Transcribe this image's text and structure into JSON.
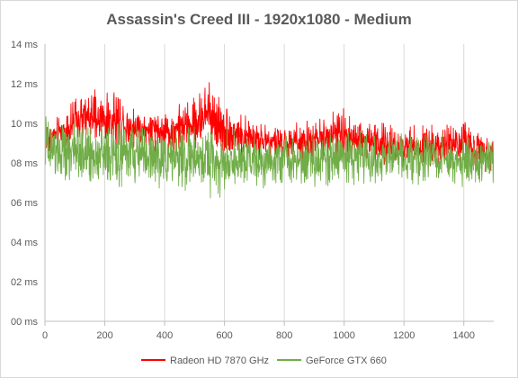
{
  "chart_data": {
    "type": "line",
    "title": "Assassin's Creed III - 1920x1080 - Medium",
    "xlabel": "",
    "ylabel": "",
    "xlim": [
      0,
      1500
    ],
    "ylim": [
      0,
      14
    ],
    "x_ticks": [
      0,
      200,
      400,
      600,
      800,
      1000,
      1200,
      1400
    ],
    "x_tick_labels": [
      "0",
      "200",
      "400",
      "600",
      "800",
      "1000",
      "1200",
      "1400"
    ],
    "y_ticks": [
      0,
      2,
      4,
      6,
      8,
      10,
      12,
      14
    ],
    "y_tick_labels": [
      "00 ms",
      "02 ms",
      "04 ms",
      "06 ms",
      "08 ms",
      "10 ms",
      "12 ms",
      "14 ms"
    ],
    "grid": "vertical",
    "legend_position": "bottom",
    "frame_count": 1500,
    "series": [
      {
        "name": "Radeon HD 7870 GHz",
        "color": "#ff0000",
        "envelope": [
          {
            "x": 0,
            "low": 8.3,
            "high": 10.2
          },
          {
            "x": 50,
            "low": 8.6,
            "high": 10.4
          },
          {
            "x": 100,
            "low": 8.8,
            "high": 11.2
          },
          {
            "x": 150,
            "low": 8.8,
            "high": 11.8
          },
          {
            "x": 200,
            "low": 8.7,
            "high": 11.5
          },
          {
            "x": 250,
            "low": 8.6,
            "high": 11.7
          },
          {
            "x": 300,
            "low": 8.5,
            "high": 11.0
          },
          {
            "x": 350,
            "low": 8.4,
            "high": 10.8
          },
          {
            "x": 400,
            "low": 8.4,
            "high": 10.6
          },
          {
            "x": 450,
            "low": 8.5,
            "high": 11.0
          },
          {
            "x": 500,
            "low": 8.6,
            "high": 11.4
          },
          {
            "x": 555,
            "low": 8.4,
            "high": 12.6
          },
          {
            "x": 600,
            "low": 8.3,
            "high": 11.0
          },
          {
            "x": 650,
            "low": 8.2,
            "high": 10.5
          },
          {
            "x": 700,
            "low": 8.2,
            "high": 10.2
          },
          {
            "x": 800,
            "low": 8.0,
            "high": 9.9
          },
          {
            "x": 900,
            "low": 8.0,
            "high": 10.2
          },
          {
            "x": 990,
            "low": 8.0,
            "high": 11.0
          },
          {
            "x": 1050,
            "low": 8.0,
            "high": 10.4
          },
          {
            "x": 1150,
            "low": 7.9,
            "high": 9.9
          },
          {
            "x": 1250,
            "low": 7.8,
            "high": 9.9
          },
          {
            "x": 1350,
            "low": 7.7,
            "high": 10.1
          },
          {
            "x": 1400,
            "low": 7.6,
            "high": 10.2
          },
          {
            "x": 1500,
            "low": 7.5,
            "high": 9.6
          }
        ]
      },
      {
        "name": "GeForce GTX 660",
        "color": "#70ad47",
        "envelope": [
          {
            "x": 0,
            "low": 6.9,
            "high": 10.6
          },
          {
            "x": 50,
            "low": 7.0,
            "high": 10.0
          },
          {
            "x": 100,
            "low": 6.9,
            "high": 10.2
          },
          {
            "x": 200,
            "low": 6.8,
            "high": 10.0
          },
          {
            "x": 300,
            "low": 6.8,
            "high": 10.0
          },
          {
            "x": 400,
            "low": 6.6,
            "high": 10.0
          },
          {
            "x": 500,
            "low": 6.5,
            "high": 9.8
          },
          {
            "x": 560,
            "low": 6.2,
            "high": 10.4
          },
          {
            "x": 600,
            "low": 6.3,
            "high": 9.8
          },
          {
            "x": 700,
            "low": 6.7,
            "high": 9.7
          },
          {
            "x": 800,
            "low": 6.8,
            "high": 9.6
          },
          {
            "x": 900,
            "low": 6.8,
            "high": 9.6
          },
          {
            "x": 1000,
            "low": 6.9,
            "high": 9.8
          },
          {
            "x": 1100,
            "low": 6.9,
            "high": 9.6
          },
          {
            "x": 1200,
            "low": 7.0,
            "high": 9.6
          },
          {
            "x": 1300,
            "low": 6.8,
            "high": 9.5
          },
          {
            "x": 1400,
            "low": 6.8,
            "high": 9.4
          },
          {
            "x": 1500,
            "low": 6.9,
            "high": 9.2
          }
        ]
      }
    ]
  }
}
